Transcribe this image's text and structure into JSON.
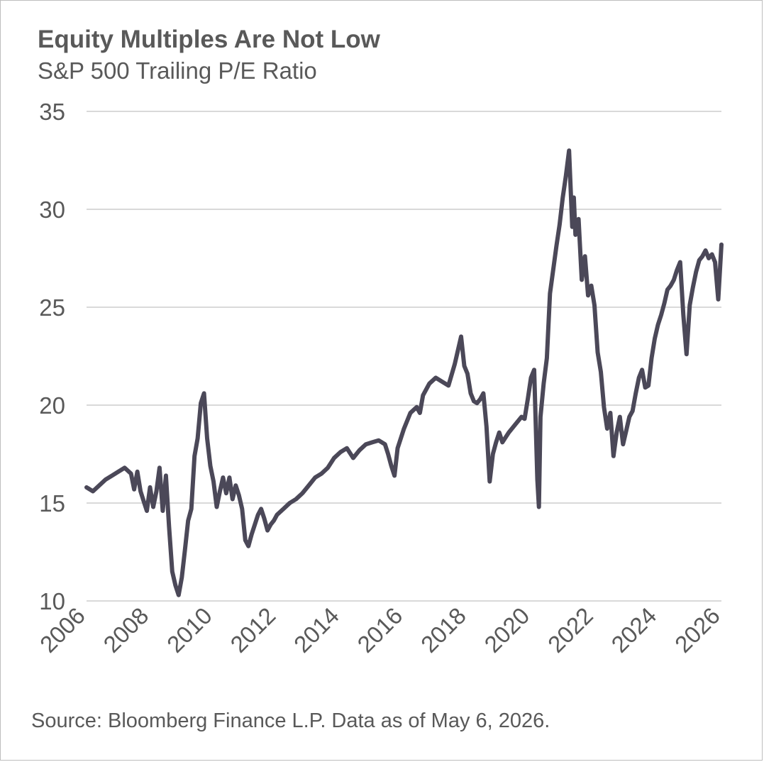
{
  "title": "Equity Multiples Are Not Low",
  "subtitle": "S&P 500 Trailing P/E Ratio",
  "source": "Source: Bloomberg Finance L.P. Data as of May 6, 2026.",
  "colors": {
    "line": "#4b4858",
    "grid": "#d9d9d9",
    "text": "#595959"
  },
  "chart_data": {
    "type": "line",
    "title": "Equity Multiples Are Not Low",
    "subtitle": "S&P 500 Trailing P/E Ratio",
    "xlabel": "",
    "ylabel": "",
    "xlim": [
      2006,
      2026
    ],
    "ylim": [
      10,
      35
    ],
    "x_ticks": [
      "2006",
      "2008",
      "2010",
      "2012",
      "2014",
      "2016",
      "2018",
      "2020",
      "2022",
      "2024",
      "2026"
    ],
    "y_ticks": [
      "10",
      "15",
      "20",
      "25",
      "30",
      "35"
    ],
    "grid": "horizontal",
    "legend": "none",
    "series": [
      {
        "x": [
          2006.0,
          2006.2,
          2006.4,
          2006.6,
          2006.8,
          2007.0,
          2007.2,
          2007.4,
          2007.5,
          2007.6,
          2007.7,
          2007.8,
          2007.9,
          2008.0,
          2008.1,
          2008.2,
          2008.3,
          2008.4,
          2008.5,
          2008.6,
          2008.7,
          2008.8,
          2008.9,
          2009.0,
          2009.1,
          2009.2,
          2009.3,
          2009.4,
          2009.5,
          2009.6,
          2009.7,
          2009.8,
          2009.9,
          2010.0,
          2010.1,
          2010.2,
          2010.3,
          2010.4,
          2010.5,
          2010.6,
          2010.7,
          2010.8,
          2010.9,
          2011.0,
          2011.1,
          2011.2,
          2011.3,
          2011.4,
          2011.5,
          2011.6,
          2011.7,
          2011.8,
          2011.9,
          2012.0,
          2012.2,
          2012.4,
          2012.6,
          2012.8,
          2013.0,
          2013.2,
          2013.4,
          2013.6,
          2013.8,
          2014.0,
          2014.2,
          2014.4,
          2014.6,
          2014.8,
          2015.0,
          2015.2,
          2015.4,
          2015.5,
          2015.6,
          2015.7,
          2015.8,
          2016.0,
          2016.2,
          2016.4,
          2016.5,
          2016.6,
          2016.8,
          2017.0,
          2017.2,
          2017.4,
          2017.6,
          2017.8,
          2017.9,
          2018.0,
          2018.1,
          2018.2,
          2018.3,
          2018.4,
          2018.5,
          2018.6,
          2018.7,
          2018.8,
          2018.9,
          2019.0,
          2019.1,
          2019.3,
          2019.5,
          2019.7,
          2019.8,
          2019.9,
          2020.0,
          2020.1,
          2020.2,
          2020.25,
          2020.3,
          2020.4,
          2020.5,
          2020.6,
          2020.7,
          2020.8,
          2020.9,
          2021.0,
          2021.1,
          2021.2,
          2021.3,
          2021.35,
          2021.4,
          2021.5,
          2021.6,
          2021.7,
          2021.8,
          2021.9,
          2022.0,
          2022.1,
          2022.2,
          2022.3,
          2022.4,
          2022.5,
          2022.6,
          2022.7,
          2022.8,
          2022.9,
          2023.0,
          2023.1,
          2023.2,
          2023.3,
          2023.4,
          2023.5,
          2023.6,
          2023.7,
          2023.8,
          2023.9,
          2024.0,
          2024.1,
          2024.2,
          2024.3,
          2024.4,
          2024.5,
          2024.6,
          2024.7,
          2024.8,
          2024.9,
          2025.0,
          2025.1,
          2025.2,
          2025.3,
          2025.4,
          2025.5,
          2025.6,
          2025.7,
          2025.8,
          2025.9,
          2026.0
        ],
        "y": [
          15.8,
          15.6,
          15.9,
          16.2,
          16.4,
          16.6,
          16.8,
          16.5,
          15.7,
          16.6,
          15.6,
          15.1,
          14.6,
          15.8,
          14.8,
          15.6,
          16.8,
          14.6,
          16.4,
          13.8,
          11.5,
          10.8,
          10.3,
          11.2,
          12.6,
          14.1,
          14.7,
          17.4,
          18.3,
          20.1,
          20.6,
          18.3,
          16.9,
          16.1,
          14.8,
          15.6,
          16.3,
          15.5,
          16.3,
          15.2,
          15.9,
          15.4,
          14.7,
          13.1,
          12.8,
          13.4,
          13.9,
          14.4,
          14.7,
          14.2,
          13.6,
          13.9,
          14.1,
          14.4,
          14.7,
          15.0,
          15.2,
          15.5,
          15.9,
          16.3,
          16.5,
          16.8,
          17.3,
          17.6,
          17.8,
          17.3,
          17.7,
          18.0,
          18.1,
          18.2,
          18.0,
          17.5,
          16.9,
          16.4,
          17.8,
          18.8,
          19.6,
          19.9,
          19.6,
          20.5,
          21.1,
          21.4,
          21.2,
          21.0,
          22.1,
          23.5,
          22.0,
          21.6,
          20.6,
          20.2,
          20.1,
          20.3,
          20.6,
          18.9,
          16.1,
          17.5,
          18.1,
          18.6,
          18.1,
          18.6,
          19.0,
          19.4,
          19.3,
          20.3,
          21.4,
          21.8,
          16.2,
          14.8,
          19.4,
          21.1,
          22.4,
          25.7,
          26.9,
          28.1,
          29.2,
          30.6,
          31.7,
          33.0,
          29.1,
          30.6,
          28.7,
          29.5,
          26.4,
          27.6,
          25.6,
          26.1,
          25.1,
          22.7,
          21.7,
          19.9,
          18.8,
          19.6,
          17.4,
          18.6,
          19.4,
          18.0,
          18.7,
          19.4,
          19.7,
          20.6,
          21.4,
          21.8,
          20.9,
          21.0,
          22.4,
          23.4,
          24.1,
          24.6,
          25.2,
          25.9,
          26.1,
          26.4,
          26.9,
          27.3,
          24.6,
          22.6,
          25.1,
          26.0,
          26.8,
          27.4,
          27.6,
          27.9,
          27.5,
          27.7,
          27.3,
          25.4,
          28.2
        ]
      }
    ]
  }
}
